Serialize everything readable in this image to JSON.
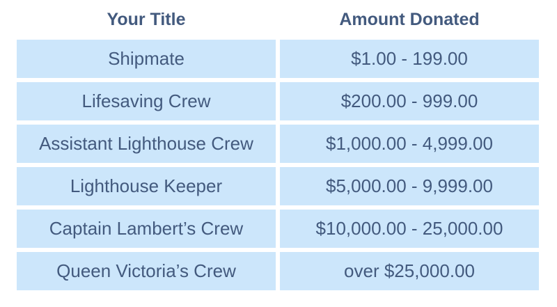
{
  "table": {
    "headers": {
      "title": "Your Title",
      "amount": "Amount Donated"
    },
    "rows": [
      {
        "title": "Shipmate",
        "amount": "$1.00 - 199.00"
      },
      {
        "title": "Lifesaving Crew",
        "amount": "$200.00 - 999.00"
      },
      {
        "title": "Assistant Lighthouse Crew",
        "amount": "$1,000.00 - 4,999.00"
      },
      {
        "title": "Lighthouse Keeper",
        "amount": "$5,000.00 - 9,999.00"
      },
      {
        "title": "Captain Lambert’s Crew",
        "amount": "$10,000.00 - 25,000.00"
      },
      {
        "title": "Queen Victoria’s Crew",
        "amount": "over $25,000.00"
      }
    ]
  },
  "colors": {
    "text": "#435a7e",
    "cell_background": "#cce6fb",
    "page_background": "#ffffff"
  }
}
